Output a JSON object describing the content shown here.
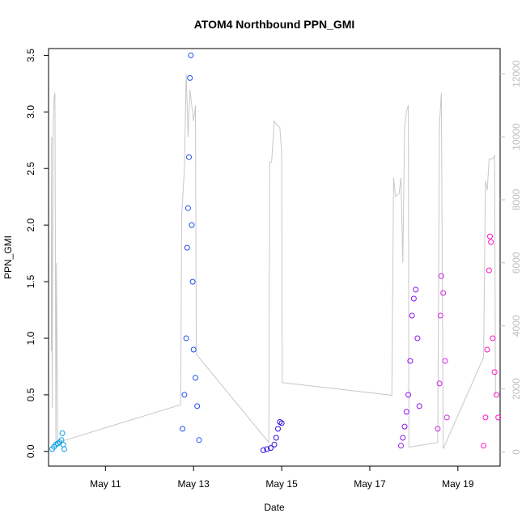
{
  "chart_data": {
    "type": "scatter",
    "title": "ATOM4 Northbound PPN_GMI",
    "xlabel": "Date",
    "ylabel": "PPN_GMI",
    "x_range": [
      "2020-05-09T17:00",
      "2020-05-19T23:00"
    ],
    "ylim": [
      -0.13,
      3.56
    ],
    "y_ticks": [
      0.0,
      0.5,
      1.0,
      1.5,
      2.0,
      2.5,
      3.0,
      3.5
    ],
    "y_tick_labels": [
      "0.0",
      "0.5",
      "1.0",
      "1.5",
      "2.0",
      "2.5",
      "3.0",
      "3.5"
    ],
    "x_ticks": [
      "2020-05-11",
      "2020-05-13",
      "2020-05-15",
      "2020-05-17",
      "2020-05-19"
    ],
    "x_tick_labels": [
      "May 11",
      "May 13",
      "May 15",
      "May 17",
      "May 19"
    ],
    "y2lim": [
      -450,
      12800
    ],
    "y2_ticks": [
      0,
      2000,
      4000,
      6000,
      8000,
      10000,
      12000
    ],
    "y2_tick_labels": [
      "0",
      "2000",
      "4000",
      "6000",
      "8000",
      "10000",
      "12000"
    ],
    "grid": false,
    "series": [
      {
        "color": "#0aa0e6",
        "points": [
          [
            "2020-05-09T19:00",
            0.02
          ],
          [
            "2020-05-09T20:00",
            0.04
          ],
          [
            "2020-05-09T21:00",
            0.06
          ],
          [
            "2020-05-09T22:00",
            0.07
          ],
          [
            "2020-05-09T23:00",
            0.08
          ],
          [
            "2020-05-10T00:00",
            0.1
          ],
          [
            "2020-05-10T00:30",
            0.16
          ],
          [
            "2020-05-10T01:00",
            0.06
          ],
          [
            "2020-05-10T01:30",
            0.02
          ]
        ]
      },
      {
        "color": "#1e50f0",
        "points": [
          [
            "2020-05-12T18:00",
            0.2
          ],
          [
            "2020-05-12T19:00",
            0.5
          ],
          [
            "2020-05-12T20:00",
            1.0
          ],
          [
            "2020-05-12T20:30",
            1.8
          ],
          [
            "2020-05-12T21:00",
            2.15
          ],
          [
            "2020-05-12T21:30",
            2.6
          ],
          [
            "2020-05-12T22:00",
            3.3
          ],
          [
            "2020-05-12T22:30",
            3.5
          ],
          [
            "2020-05-12T23:00",
            2.0
          ],
          [
            "2020-05-12T23:30",
            1.5
          ],
          [
            "2020-05-13T00:00",
            0.9
          ],
          [
            "2020-05-13T01:00",
            0.65
          ],
          [
            "2020-05-13T02:00",
            0.4
          ],
          [
            "2020-05-13T03:00",
            0.1
          ]
        ]
      },
      {
        "color": "#2a10dc",
        "points": [
          [
            "2020-05-14T14:00",
            0.01
          ],
          [
            "2020-05-14T16:00",
            0.02
          ],
          [
            "2020-05-14T18:00",
            0.03
          ],
          [
            "2020-05-14T20:00",
            0.06
          ],
          [
            "2020-05-14T21:00",
            0.12
          ],
          [
            "2020-05-14T22:00",
            0.2
          ],
          [
            "2020-05-14T23:00",
            0.26
          ],
          [
            "2020-05-15T00:00",
            0.25
          ]
        ]
      },
      {
        "color": "#8c14f0",
        "points": [
          [
            "2020-05-17T17:00",
            0.05
          ],
          [
            "2020-05-17T18:00",
            0.12
          ],
          [
            "2020-05-17T19:00",
            0.22
          ],
          [
            "2020-05-17T20:00",
            0.35
          ],
          [
            "2020-05-17T21:00",
            0.5
          ],
          [
            "2020-05-17T22:00",
            0.8
          ],
          [
            "2020-05-17T23:00",
            1.2
          ],
          [
            "2020-05-18T00:00",
            1.35
          ],
          [
            "2020-05-18T01:00",
            1.43
          ],
          [
            "2020-05-18T02:00",
            1.0
          ],
          [
            "2020-05-18T03:00",
            0.4
          ]
        ]
      },
      {
        "color": "#d228e6",
        "points": [
          [
            "2020-05-18T13:00",
            0.2
          ],
          [
            "2020-05-18T14:00",
            0.6
          ],
          [
            "2020-05-18T14:30",
            1.2
          ],
          [
            "2020-05-18T15:00",
            1.55
          ],
          [
            "2020-05-18T16:00",
            1.4
          ],
          [
            "2020-05-18T17:00",
            0.8
          ],
          [
            "2020-05-18T18:00",
            0.3
          ]
        ]
      },
      {
        "color": "#ff14c8",
        "points": [
          [
            "2020-05-19T14:00",
            0.05
          ],
          [
            "2020-05-19T15:00",
            0.3
          ],
          [
            "2020-05-19T16:00",
            0.9
          ],
          [
            "2020-05-19T17:00",
            1.6
          ],
          [
            "2020-05-19T17:30",
            1.9
          ],
          [
            "2020-05-19T18:00",
            1.85
          ],
          [
            "2020-05-19T19:00",
            1.0
          ],
          [
            "2020-05-19T20:00",
            0.7
          ],
          [
            "2020-05-19T21:00",
            0.5
          ],
          [
            "2020-05-19T22:00",
            0.3
          ]
        ]
      }
    ],
    "secondary_line": {
      "color": "#c8c8c8",
      "points": [
        [
          "2020-05-09T18:30",
          3200
        ],
        [
          "2020-05-09T18:40",
          10000
        ],
        [
          "2020-05-09T19:00",
          1400
        ],
        [
          "2020-05-09T19:30",
          10300
        ],
        [
          "2020-05-09T20:00",
          11200
        ],
        [
          "2020-05-09T20:30",
          11400
        ],
        [
          "2020-05-09T21:00",
          200
        ],
        [
          "2020-05-09T21:20",
          6000
        ],
        [
          "2020-05-09T22:00",
          300
        ],
        [
          "2020-05-12T17:00",
          1500
        ],
        [
          "2020-05-12T17:30",
          7500
        ],
        [
          "2020-05-12T18:00",
          8000
        ],
        [
          "2020-05-12T19:00",
          9000
        ],
        [
          "2020-05-12T20:00",
          12000
        ],
        [
          "2020-05-12T21:00",
          10000
        ],
        [
          "2020-05-12T22:00",
          11500
        ],
        [
          "2020-05-13T00:00",
          10500
        ],
        [
          "2020-05-13T01:00",
          11000
        ],
        [
          "2020-05-13T01:30",
          3100
        ],
        [
          "2020-05-14T17:00",
          300
        ],
        [
          "2020-05-14T17:30",
          9200
        ],
        [
          "2020-05-14T18:30",
          9200
        ],
        [
          "2020-05-14T20:00",
          10500
        ],
        [
          "2020-05-14T21:00",
          10400
        ],
        [
          "2020-05-14T23:00",
          10300
        ],
        [
          "2020-05-15T00:00",
          9500
        ],
        [
          "2020-05-15T00:20",
          2200
        ],
        [
          "2020-05-17T12:00",
          1800
        ],
        [
          "2020-05-17T13:00",
          8700
        ],
        [
          "2020-05-17T14:00",
          8100
        ],
        [
          "2020-05-17T16:00",
          8200
        ],
        [
          "2020-05-17T17:00",
          8700
        ],
        [
          "2020-05-17T18:00",
          6000
        ],
        [
          "2020-05-17T19:00",
          10300
        ],
        [
          "2020-05-17T20:00",
          10800
        ],
        [
          "2020-05-17T21:00",
          11000
        ],
        [
          "2020-05-17T21:20",
          150
        ],
        [
          "2020-05-18T13:00",
          300
        ],
        [
          "2020-05-18T14:00",
          10400
        ],
        [
          "2020-05-18T15:00",
          11400
        ],
        [
          "2020-05-18T16:00",
          100
        ],
        [
          "2020-05-19T14:00",
          3000
        ],
        [
          "2020-05-19T15:00",
          8600
        ],
        [
          "2020-05-19T16:00",
          8300
        ],
        [
          "2020-05-19T17:00",
          9300
        ],
        [
          "2020-05-19T18:00",
          9300
        ],
        [
          "2020-05-19T19:00",
          9300
        ],
        [
          "2020-05-19T20:00",
          9400
        ],
        [
          "2020-05-19T20:30",
          1800
        ]
      ]
    }
  }
}
